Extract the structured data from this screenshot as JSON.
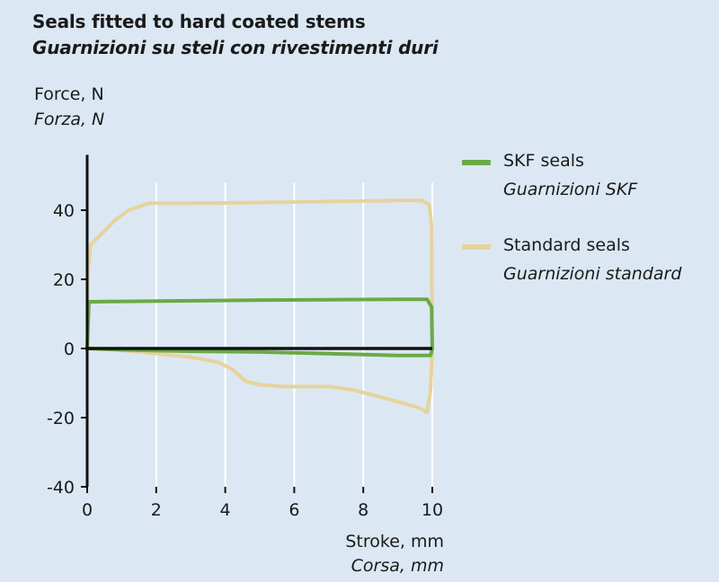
{
  "header": {
    "title": "Seals fitted to hard coated stems",
    "subtitle": "Guarnizioni su steli con rivestimenti duri"
  },
  "axes": {
    "y_label": "Force, N",
    "y_label_it": "Forza, N",
    "x_label": "Stroke, mm",
    "x_label_it": "Corsa, mm"
  },
  "legend": [
    {
      "label": "SKF seals",
      "label_it": "Guarnizioni SKF",
      "color": "#6aaa45"
    },
    {
      "label": "Standard seals",
      "label_it": "Guarnizioni standard",
      "color": "#e6d39c"
    }
  ],
  "chart_data": {
    "type": "line",
    "title": "Seals fitted to hard coated stems",
    "subtitle": "Guarnizioni su steli con rivestimenti duri",
    "xlabel": "Stroke, mm",
    "ylabel": "Force, N",
    "xlim": [
      0,
      10
    ],
    "ylim": [
      -40,
      50
    ],
    "x_ticks": [
      0,
      2,
      4,
      6,
      8,
      10
    ],
    "y_ticks": [
      -40,
      -20,
      0,
      20,
      40
    ],
    "grid": "vertical",
    "legend_position": "right",
    "series": [
      {
        "name": "SKF seals",
        "color": "#6aaa45",
        "points": [
          [
            0,
            0
          ],
          [
            0.05,
            13.5
          ],
          [
            1,
            13.6
          ],
          [
            3,
            13.8
          ],
          [
            5,
            14
          ],
          [
            7,
            14.1
          ],
          [
            9,
            14.2
          ],
          [
            9.85,
            14.2
          ],
          [
            9.98,
            12
          ],
          [
            10,
            0
          ],
          [
            9.95,
            -2
          ],
          [
            9,
            -2
          ],
          [
            7,
            -1.5
          ],
          [
            5,
            -1
          ],
          [
            3,
            -0.8
          ],
          [
            1,
            -0.4
          ],
          [
            0,
            0
          ]
        ]
      },
      {
        "name": "Standard seals",
        "color": "#e6d39c",
        "points": [
          [
            0,
            0
          ],
          [
            0.02,
            22
          ],
          [
            0.1,
            30
          ],
          [
            0.4,
            33
          ],
          [
            0.8,
            37
          ],
          [
            1.2,
            40
          ],
          [
            1.8,
            42
          ],
          [
            3,
            42
          ],
          [
            5,
            42.2
          ],
          [
            7,
            42.5
          ],
          [
            9,
            42.8
          ],
          [
            9.7,
            42.8
          ],
          [
            9.92,
            41.5
          ],
          [
            9.98,
            35
          ],
          [
            10,
            0
          ],
          [
            9.95,
            -12
          ],
          [
            9.85,
            -18.5
          ],
          [
            9.7,
            -17.5
          ],
          [
            9.4,
            -16.5
          ],
          [
            8.5,
            -14
          ],
          [
            7.7,
            -12
          ],
          [
            7,
            -11
          ],
          [
            5.7,
            -11
          ],
          [
            5,
            -10.5
          ],
          [
            4.6,
            -9.5
          ],
          [
            4.2,
            -6
          ],
          [
            3.8,
            -4
          ],
          [
            3,
            -2.5
          ],
          [
            2,
            -1.5
          ],
          [
            1,
            -0.5
          ],
          [
            0,
            0
          ]
        ]
      }
    ]
  }
}
